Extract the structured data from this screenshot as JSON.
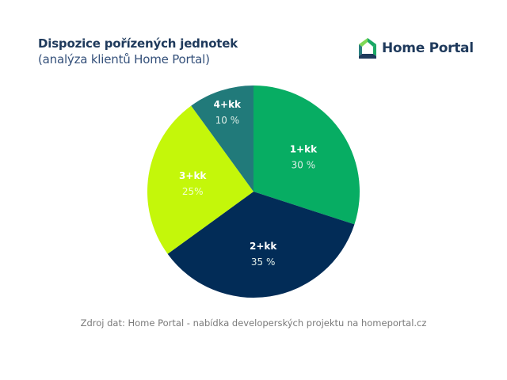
{
  "header": {
    "title": "Dispozice pořízených jednotek",
    "subtitle": "(analýza klientů Home Portal)"
  },
  "logo": {
    "icon": "house-icon",
    "text": "Home Portal",
    "colors": [
      "#7ed957",
      "#1aa865",
      "#2a7f7f",
      "#1f3a5c"
    ]
  },
  "chart_data": {
    "type": "pie",
    "title": "Dispozice pořízených jednotek",
    "subtitle": "(analýza klientů Home Portal)",
    "categories": [
      "1+kk",
      "2+kk",
      "3+kk",
      "4+kk"
    ],
    "values": [
      30,
      35,
      25,
      10
    ],
    "value_labels": [
      "30 %",
      "35 %",
      "25%",
      "10 %"
    ],
    "colors": [
      "#07ad63",
      "#022c57",
      "#c4f70a",
      "#217a7a"
    ],
    "start_angle": "12 o'clock, clockwise",
    "legend": "none (labels inside slices)"
  },
  "footer": {
    "source": "Zdroj dat: Home Portal - nabídka developerských projektu na homeportal.cz"
  }
}
